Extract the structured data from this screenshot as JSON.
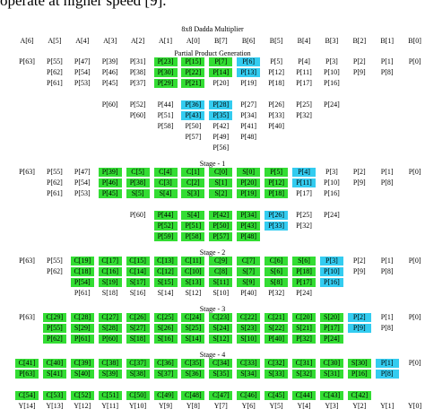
{
  "top_text": "operate at higher speed [9].",
  "title": "8x8 Dadda Multiplier",
  "palette": {
    "green": "#33dd33",
    "cyan": "#33ccf0"
  },
  "header": [
    "A[6]",
    "A[5]",
    "A[4]",
    "A[3]",
    "A[2]",
    "A[1]",
    "A[0]",
    "B[7]",
    "B[6]",
    "B[5]",
    "B[4]",
    "B[3]",
    "B[2]",
    "B[1]",
    "B[0]"
  ],
  "sections": [
    {
      "label": "Partial Product Generation",
      "groups": [
        [
          {
            "cells": [
              "P[63]",
              "P[55]",
              "P[47]",
              "P[39]",
              "P[31]",
              "P[23]",
              "P[15]",
              "P[7]",
              "P[6]",
              "P[5]",
              "P[4]",
              "P[3]",
              "P[2]",
              "P[1]",
              "P[0]"
            ],
            "colors": [
              null,
              null,
              null,
              null,
              null,
              "green",
              "green",
              "green",
              "cyan",
              null,
              null,
              null,
              null,
              null,
              null
            ]
          },
          {
            "cells": [
              null,
              "P[62]",
              "P[54]",
              "P[46]",
              "P[38]",
              "P[30]",
              "P[22]",
              "P[14]",
              "P[13]",
              "P[12]",
              "P[11]",
              "P[10]",
              "P[9]",
              "P[8]",
              null
            ],
            "colors": [
              null,
              null,
              null,
              null,
              null,
              "green",
              "green",
              "green",
              "cyan",
              null,
              null,
              null,
              null,
              null,
              null
            ]
          },
          {
            "cells": [
              null,
              "P[61]",
              "P[53]",
              "P[45]",
              "P[37]",
              "P[29]",
              "P[21]",
              "P[20]",
              "P[19]",
              "P[18]",
              "P[17]",
              "P[16]",
              null,
              null,
              null
            ],
            "colors": [
              null,
              null,
              null,
              null,
              null,
              "green",
              "green",
              null,
              null,
              null,
              null,
              null,
              null,
              null,
              null
            ]
          }
        ],
        [
          {
            "cells": [
              null,
              null,
              null,
              "P[60]",
              "P[52]",
              "P[44]",
              "P[36]",
              "P[28]",
              "P[27]",
              "P[26]",
              "P[25]",
              "P[24]",
              null,
              null,
              null
            ],
            "colors": [
              null,
              null,
              null,
              null,
              null,
              null,
              "cyan",
              "cyan",
              null,
              null,
              null,
              null,
              null,
              null,
              null
            ]
          },
          {
            "cells": [
              null,
              null,
              null,
              null,
              "P[60]",
              "P[51]",
              "P[43]",
              "P[35]",
              "P[34]",
              "P[33]",
              "P[32]",
              null,
              null,
              null,
              null
            ],
            "colors": [
              null,
              null,
              null,
              null,
              null,
              null,
              "cyan",
              "cyan",
              null,
              null,
              null,
              null,
              null,
              null,
              null
            ]
          },
          {
            "cells": [
              null,
              null,
              null,
              null,
              null,
              "P[58]",
              "P[50]",
              "P[42]",
              "P[41]",
              "P[40]",
              null,
              null,
              null,
              null,
              null
            ],
            "colors": [
              null,
              null,
              null,
              null,
              null,
              null,
              null,
              null,
              null,
              null,
              null,
              null,
              null,
              null,
              null
            ]
          },
          {
            "cells": [
              null,
              null,
              null,
              null,
              null,
              null,
              "P[57]",
              "P[49]",
              "P[48]",
              null,
              null,
              null,
              null,
              null,
              null
            ],
            "colors": [
              null,
              null,
              null,
              null,
              null,
              null,
              null,
              null,
              null,
              null,
              null,
              null,
              null,
              null,
              null
            ]
          },
          {
            "cells": [
              null,
              null,
              null,
              null,
              null,
              null,
              null,
              "P[56]",
              null,
              null,
              null,
              null,
              null,
              null,
              null
            ],
            "colors": [
              null,
              null,
              null,
              null,
              null,
              null,
              null,
              null,
              null,
              null,
              null,
              null,
              null,
              null,
              null
            ]
          }
        ]
      ]
    },
    {
      "label": "Stage - 1",
      "groups": [
        [
          {
            "cells": [
              "P[63]",
              "P[55]",
              "P[47]",
              "P[39]",
              "C[5]",
              "C[4]",
              "C[1]",
              "C[0]",
              "S[0]",
              "P[5]",
              "P[4]",
              "P[3]",
              "P[2]",
              "P[1]",
              "P[0]"
            ],
            "colors": [
              null,
              null,
              null,
              "green",
              "green",
              "green",
              "green",
              "green",
              "green",
              "green",
              "cyan",
              null,
              null,
              null,
              null
            ]
          },
          {
            "cells": [
              null,
              "P[62]",
              "P[54]",
              "P[46]",
              "P[38]",
              "C[3]",
              "C[2]",
              "S[1]",
              "P[20]",
              "P[12]",
              "P[11]",
              "P[10]",
              "P[9]",
              "P[8]",
              null
            ],
            "colors": [
              null,
              null,
              null,
              "green",
              "green",
              "green",
              "green",
              "green",
              "green",
              "green",
              "cyan",
              null,
              null,
              null,
              null
            ]
          },
          {
            "cells": [
              null,
              "P[61]",
              "P[53]",
              "P[45]",
              "S[5]",
              "S[4]",
              "S[3]",
              "S[2]",
              "P[19]",
              "P[18]",
              "P[17]",
              "P[16]",
              null,
              null,
              null
            ],
            "colors": [
              null,
              null,
              null,
              "green",
              "green",
              "green",
              "green",
              "green",
              "green",
              "green",
              null,
              null,
              null,
              null,
              null
            ]
          }
        ],
        [
          {
            "cells": [
              null,
              null,
              null,
              null,
              "P[60]",
              "P[44]",
              "S[4]",
              "P[42]",
              "P[34]",
              "P[26]",
              "P[25]",
              "P[24]",
              null,
              null,
              null
            ],
            "colors": [
              null,
              null,
              null,
              null,
              null,
              "green",
              "green",
              "green",
              "green",
              "cyan",
              null,
              null,
              null,
              null,
              null
            ]
          },
          {
            "cells": [
              null,
              null,
              null,
              null,
              null,
              "P[52]",
              "P[51]",
              "P[50]",
              "P[43]",
              "P[33]",
              "P[32]",
              null,
              null,
              null,
              null
            ],
            "colors": [
              null,
              null,
              null,
              null,
              null,
              "green",
              "green",
              "green",
              "green",
              "cyan",
              null,
              null,
              null,
              null,
              null
            ]
          },
          {
            "cells": [
              null,
              null,
              null,
              null,
              null,
              "P[59]",
              "P[58]",
              "P[57]",
              "P[48]",
              null,
              null,
              null,
              null,
              null,
              null
            ],
            "colors": [
              null,
              null,
              null,
              null,
              null,
              "green",
              "green",
              "green",
              "green",
              null,
              null,
              null,
              null,
              null,
              null
            ]
          }
        ]
      ]
    },
    {
      "label": "Stage - 2",
      "groups": [
        [
          {
            "cells": [
              "P[63]",
              "P[55]",
              "C[19]",
              "C[17]",
              "C[15]",
              "C[13]",
              "C[11]",
              "C[9]",
              "C[7]",
              "C[6]",
              "S[6]",
              "P[3]",
              "P[2]",
              "P[1]",
              "P[0]"
            ],
            "colors": [
              null,
              null,
              "green",
              "green",
              "green",
              "green",
              "green",
              "green",
              "green",
              "green",
              "green",
              "cyan",
              null,
              null,
              null
            ]
          },
          {
            "cells": [
              null,
              "P[62]",
              "C[18]",
              "C[16]",
              "C[14]",
              "C[12]",
              "C[10]",
              "C[8]",
              "S[7]",
              "S[6]",
              "P[18]",
              "P[10]",
              "P[9]",
              "P[8]",
              null
            ],
            "colors": [
              null,
              null,
              "green",
              "green",
              "green",
              "green",
              "green",
              "green",
              "green",
              "green",
              "green",
              "cyan",
              null,
              null,
              null
            ]
          },
          {
            "cells": [
              null,
              null,
              "P[54]",
              "S[19]",
              "S[17]",
              "S[15]",
              "S[13]",
              "S[11]",
              "S[9]",
              "S[8]",
              "P[17]",
              "P[16]",
              null,
              null,
              null
            ],
            "colors": [
              null,
              null,
              "green",
              "green",
              "green",
              "green",
              "green",
              "green",
              "green",
              "green",
              "green",
              "cyan",
              null,
              null,
              null
            ]
          },
          {
            "cells": [
              null,
              null,
              "P[61]",
              "S[18]",
              "S[16]",
              "S[14]",
              "S[12]",
              "S[10]",
              "P[40]",
              "P[32]",
              "P[24]",
              null,
              null,
              null,
              null
            ],
            "colors": [
              null,
              null,
              null,
              null,
              null,
              null,
              null,
              null,
              null,
              null,
              null,
              null,
              null,
              null,
              null
            ]
          }
        ]
      ]
    },
    {
      "label": "Stage - 3",
      "groups": [
        [
          {
            "cells": [
              "P[63]",
              "C[29]",
              "C[28]",
              "C[27]",
              "C[26]",
              "C[25]",
              "C[24]",
              "C[23]",
              "C[22]",
              "C[21]",
              "C[20]",
              "S[20]",
              "P[2]",
              "P[1]",
              "P[0]"
            ],
            "colors": [
              null,
              "green",
              "green",
              "green",
              "green",
              "green",
              "green",
              "green",
              "green",
              "green",
              "green",
              "green",
              "cyan",
              null,
              null
            ]
          },
          {
            "cells": [
              null,
              "P[55]",
              "S[29]",
              "S[28]",
              "S[27]",
              "S[26]",
              "S[25]",
              "S[24]",
              "S[23]",
              "S[22]",
              "S[21]",
              "P[17]",
              "P[9]",
              "P[8]",
              null
            ],
            "colors": [
              null,
              "green",
              "green",
              "green",
              "green",
              "green",
              "green",
              "green",
              "green",
              "green",
              "green",
              "green",
              "cyan",
              null,
              null
            ]
          },
          {
            "cells": [
              null,
              "P[62]",
              "P[61]",
              "P[60]",
              "S[18]",
              "S[16]",
              "S[14]",
              "S[12]",
              "S[10]",
              "P[40]",
              "P[32]",
              "P[24]",
              null,
              null,
              null
            ],
            "colors": [
              null,
              "green",
              "green",
              "green",
              "green",
              "green",
              "green",
              "green",
              "green",
              "green",
              "green",
              "green",
              null,
              null,
              null
            ]
          }
        ]
      ]
    },
    {
      "label": "Stage - 4",
      "groups": [
        [
          {
            "cells": [
              "C[41]",
              "C[40]",
              "C[39]",
              "C[38]",
              "C[37]",
              "C[36]",
              "C[35]",
              "C[34]",
              "C[33]",
              "C[32]",
              "C[31]",
              "C[30]",
              "S[30]",
              "P[1]",
              "P[0]"
            ],
            "colors": [
              "green",
              "green",
              "green",
              "green",
              "green",
              "green",
              "green",
              "green",
              "green",
              "green",
              "green",
              "green",
              "green",
              "cyan",
              null
            ]
          },
          {
            "cells": [
              "P[63]",
              "S[41]",
              "S[40]",
              "S[39]",
              "S[38]",
              "S[37]",
              "S[36]",
              "S[35]",
              "S[34]",
              "S[33]",
              "S[32]",
              "S[31]",
              "P[16]",
              "P[8]",
              null
            ],
            "colors": [
              "green",
              "green",
              "green",
              "green",
              "green",
              "green",
              "green",
              "green",
              "green",
              "green",
              "green",
              "green",
              "green",
              "cyan",
              null
            ]
          }
        ],
        [
          {
            "cells": [
              "C[54]",
              "C[53]",
              "C[52]",
              "C[51]",
              "C[50]",
              "C[49]",
              "C[48]",
              "C[47]",
              "C[46]",
              "C[45]",
              "C[44]",
              "C[43]",
              "C[42]",
              null,
              null
            ],
            "colors": [
              "green",
              "green",
              "green",
              "green",
              "green",
              "green",
              "green",
              "green",
              "green",
              "green",
              "green",
              "green",
              "green",
              null,
              null
            ]
          },
          {
            "cells": [
              "Y[14]",
              "Y[13]",
              "Y[12]",
              "Y[11]",
              "Y[10]",
              "Y[9]",
              "Y[8]",
              "Y[7]",
              "Y[6]",
              "Y[5]",
              "Y[4]",
              "Y[3]",
              "Y[2]",
              "Y[1]",
              "Y[0]"
            ],
            "colors": [
              null,
              null,
              null,
              null,
              null,
              null,
              null,
              null,
              null,
              null,
              null,
              null,
              null,
              null,
              null
            ]
          }
        ]
      ]
    }
  ]
}
